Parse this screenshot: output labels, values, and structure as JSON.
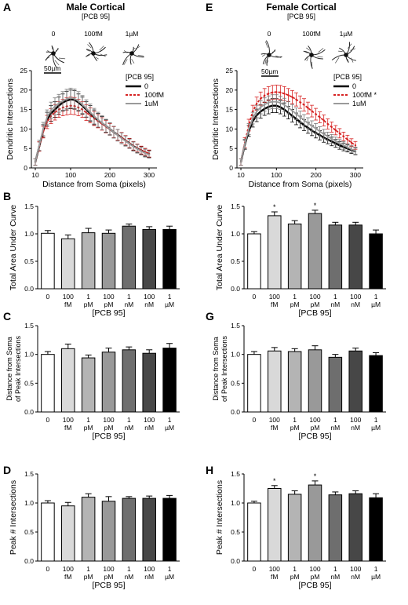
{
  "chart_data": [
    {
      "id": "A",
      "type": "line",
      "letter": "A",
      "title": "Male Cortical",
      "subtitle": "[PCB 95]",
      "image_labels": [
        "0",
        "100fM",
        "1µM"
      ],
      "scale_label": "50µm",
      "xlabel": "Distance from Soma (pixels)",
      "ylabel": "Dendritic Intersections",
      "xlim": [
        0,
        320
      ],
      "ylim": [
        0,
        25
      ],
      "xticks": [
        10,
        100,
        200,
        300
      ],
      "yticks": [
        0,
        5,
        10,
        15,
        20,
        25
      ],
      "legend": {
        "title": "[PCB 95]",
        "position": "top-right",
        "labels": [
          "0",
          "100fM",
          "1uM"
        ]
      },
      "colors": [
        "#000000",
        "#d62020",
        "#9a9a9a"
      ],
      "x": [
        10,
        20,
        30,
        40,
        50,
        60,
        70,
        80,
        90,
        100,
        110,
        120,
        130,
        140,
        150,
        160,
        170,
        180,
        190,
        200,
        210,
        220,
        230,
        240,
        250,
        260,
        270,
        280,
        290,
        300
      ],
      "series": [
        {
          "name": "0",
          "values": [
            1.5,
            5.5,
            9.5,
            12.5,
            14,
            15,
            16,
            16.8,
            17.3,
            17.6,
            17.5,
            16.8,
            16,
            15,
            14,
            13,
            12.2,
            11.5,
            10.8,
            10,
            9.2,
            8.5,
            7.8,
            7,
            6.3,
            5.6,
            5,
            4.5,
            4,
            3.6
          ],
          "err": [
            0.8,
            1.2,
            1.6,
            1.8,
            2,
            2,
            2.2,
            2.2,
            2.4,
            2.4,
            2.4,
            2.2,
            2.2,
            2,
            2,
            1.9,
            1.8,
            1.7,
            1.6,
            1.5,
            1.5,
            1.4,
            1.3,
            1.3,
            1.2,
            1.1,
            1.1,
            1,
            1,
            0.9
          ]
        },
        {
          "name": "100fM",
          "values": [
            1.5,
            5.5,
            9.2,
            11.8,
            13.3,
            14.3,
            15,
            15.5,
            15.8,
            16,
            15.9,
            15.5,
            15,
            14.2,
            13.5,
            12.7,
            12,
            11.3,
            10.6,
            9.9,
            9.2,
            8.5,
            7.8,
            7.1,
            6.4,
            5.7,
            5.1,
            4.6,
            4.1,
            3.7
          ],
          "err": [
            0.8,
            1.2,
            1.5,
            1.7,
            1.9,
            2,
            2,
            2.1,
            2.2,
            2.2,
            2.2,
            2.1,
            2,
            2,
            1.9,
            1.8,
            1.7,
            1.6,
            1.6,
            1.5,
            1.4,
            1.4,
            1.3,
            1.2,
            1.2,
            1.1,
            1,
            1,
            0.9,
            0.9
          ]
        },
        {
          "name": "1uM",
          "values": [
            1.5,
            5.8,
            10,
            13,
            14.8,
            15.8,
            16.6,
            17.2,
            17.7,
            18,
            17.8,
            17.2,
            16.3,
            15.3,
            14.3,
            13.3,
            12.4,
            11.6,
            10.8,
            10,
            9.2,
            8.4,
            7.6,
            6.9,
            6.2,
            5.5,
            4.9,
            4.3,
            3.8,
            3.4
          ],
          "err": [
            0.8,
            1.3,
            1.7,
            1.9,
            2.1,
            2.2,
            2.3,
            2.4,
            2.5,
            2.5,
            2.5,
            2.4,
            2.3,
            2.2,
            2.1,
            2,
            1.9,
            1.8,
            1.7,
            1.6,
            1.5,
            1.5,
            1.4,
            1.3,
            1.2,
            1.2,
            1.1,
            1,
            1,
            0.9
          ]
        }
      ]
    },
    {
      "id": "E",
      "type": "line",
      "letter": "E",
      "title": "Female Cortical",
      "subtitle": "[PCB 95]",
      "image_labels": [
        "0",
        "100fM",
        "1µM"
      ],
      "scale_label": "50µm",
      "xlabel": "Distance from Soma (pixels)",
      "ylabel": "Dendritic Intersections",
      "xlim": [
        0,
        320
      ],
      "ylim": [
        0,
        25
      ],
      "xticks": [
        10,
        100,
        200,
        300
      ],
      "yticks": [
        0,
        5,
        10,
        15,
        20,
        25
      ],
      "legend": {
        "title": "[PCB 95]",
        "position": "top-right",
        "labels": [
          "0",
          "100fM *",
          "1uM"
        ]
      },
      "colors": [
        "#000000",
        "#d62020",
        "#9a9a9a"
      ],
      "x": [
        10,
        20,
        30,
        40,
        50,
        60,
        70,
        80,
        90,
        100,
        110,
        120,
        130,
        140,
        150,
        160,
        170,
        180,
        190,
        200,
        210,
        220,
        230,
        240,
        250,
        260,
        270,
        280,
        290,
        300
      ],
      "series": [
        {
          "name": "0",
          "values": [
            1.5,
            6,
            9.5,
            12,
            13.5,
            14.5,
            15.2,
            15.7,
            16,
            16,
            15.6,
            15,
            14.2,
            13.4,
            12.6,
            11.8,
            11,
            10.3,
            9.6,
            9,
            8.4,
            7.8,
            7.3,
            6.8,
            6.3,
            5.8,
            5.4,
            5,
            4.6,
            4.3
          ],
          "err": [
            0.8,
            1.2,
            1.4,
            1.5,
            1.6,
            1.7,
            1.7,
            1.8,
            1.8,
            1.8,
            1.7,
            1.7,
            1.6,
            1.6,
            1.5,
            1.5,
            1.4,
            1.4,
            1.3,
            1.3,
            1.2,
            1.2,
            1.1,
            1.1,
            1,
            1,
            1,
            0.9,
            0.9,
            0.9
          ]
        },
        {
          "name": "100fM *",
          "values": [
            1.5,
            6.5,
            11,
            14.5,
            16.5,
            17.8,
            18.6,
            19.1,
            19.4,
            19.5,
            19.4,
            19.1,
            18.7,
            18.2,
            17.6,
            16.9,
            16.2,
            15.4,
            14.6,
            13.8,
            13,
            12.2,
            11.3,
            10.5,
            9.7,
            8.9,
            8.1,
            7.3,
            6.5,
            5.8
          ],
          "err": [
            0.8,
            1.3,
            1.5,
            1.6,
            1.7,
            1.7,
            1.8,
            1.8,
            1.8,
            1.8,
            1.8,
            1.8,
            1.7,
            1.7,
            1.7,
            1.6,
            1.6,
            1.5,
            1.5,
            1.5,
            1.4,
            1.4,
            1.3,
            1.3,
            1.2,
            1.2,
            1.1,
            1.1,
            1,
            1
          ]
        },
        {
          "name": "1uM",
          "values": [
            1.5,
            6.2,
            10,
            12.8,
            14.5,
            15.6,
            16.3,
            16.8,
            17,
            17,
            16.7,
            16.2,
            15.5,
            14.7,
            13.9,
            13.1,
            12.3,
            11.5,
            10.8,
            10.1,
            9.4,
            8.7,
            8.1,
            7.5,
            6.9,
            6.3,
            5.8,
            5.3,
            4.8,
            4.4
          ],
          "err": [
            0.8,
            1.2,
            1.4,
            1.5,
            1.6,
            1.7,
            1.7,
            1.7,
            1.8,
            1.8,
            1.7,
            1.7,
            1.6,
            1.6,
            1.5,
            1.5,
            1.4,
            1.4,
            1.3,
            1.3,
            1.2,
            1.2,
            1.1,
            1.1,
            1,
            1,
            1,
            0.9,
            0.9,
            0.9
          ]
        }
      ]
    },
    {
      "id": "B",
      "type": "bar",
      "letter": "B",
      "ylabel": "Total Area Under Curve",
      "xlabel": "[PCB 95]",
      "categories": [
        "0",
        "100 fM",
        "1 pM",
        "100 pM",
        "1 nM",
        "100 nM",
        "1 µM"
      ],
      "values": [
        1.01,
        0.91,
        1.02,
        1.01,
        1.14,
        1.08,
        1.08
      ],
      "err": [
        0.05,
        0.07,
        0.08,
        0.06,
        0.04,
        0.05,
        0.06
      ],
      "sig": [
        false,
        false,
        false,
        false,
        false,
        false,
        false
      ],
      "ylim": [
        0,
        1.5
      ],
      "yticks": [
        0,
        0.5,
        1.0,
        1.5
      ]
    },
    {
      "id": "F",
      "type": "bar",
      "letter": "F",
      "ylabel": "Total Area Under Curve",
      "xlabel": "[PCB 95]",
      "categories": [
        "0",
        "100 fM",
        "1 pM",
        "100 pM",
        "1 nM",
        "100 nM",
        "1 µM"
      ],
      "values": [
        1.0,
        1.33,
        1.18,
        1.37,
        1.16,
        1.16,
        1.0
      ],
      "err": [
        0.04,
        0.07,
        0.06,
        0.06,
        0.05,
        0.05,
        0.07
      ],
      "sig": [
        false,
        true,
        false,
        true,
        false,
        false,
        false
      ],
      "sig_mark": "*",
      "ylim": [
        0,
        1.5
      ],
      "yticks": [
        0,
        0.5,
        1.0,
        1.5
      ]
    },
    {
      "id": "C",
      "type": "bar",
      "letter": "C",
      "ylabel": "Distance from Soma of Peak Intersections",
      "xlabel": "[PCB 95]",
      "categories": [
        "0",
        "100 fM",
        "1 pM",
        "100 pM",
        "1 nM",
        "100 nM",
        "1 µM"
      ],
      "values": [
        1.0,
        1.1,
        0.94,
        1.04,
        1.08,
        1.02,
        1.11
      ],
      "err": [
        0.05,
        0.08,
        0.05,
        0.07,
        0.05,
        0.06,
        0.08
      ],
      "sig": [
        false,
        false,
        false,
        false,
        false,
        false,
        false
      ],
      "ylim": [
        0,
        1.5
      ],
      "yticks": [
        0,
        0.5,
        1.0,
        1.5
      ]
    },
    {
      "id": "G",
      "type": "bar",
      "letter": "G",
      "ylabel": "Distance from Soma of Peak Intersections",
      "xlabel": "[PCB 95]",
      "categories": [
        "0",
        "100 fM",
        "1 pM",
        "100 pM",
        "1 nM",
        "100 nM",
        "1 µM"
      ],
      "values": [
        1.0,
        1.06,
        1.05,
        1.08,
        0.95,
        1.06,
        0.98
      ],
      "err": [
        0.05,
        0.06,
        0.05,
        0.07,
        0.05,
        0.05,
        0.05
      ],
      "sig": [
        false,
        false,
        false,
        false,
        false,
        false,
        false
      ],
      "ylim": [
        0,
        1.5
      ],
      "yticks": [
        0,
        0.5,
        1.0,
        1.5
      ]
    },
    {
      "id": "D",
      "type": "bar",
      "letter": "D",
      "ylabel": "Peak # Intersections",
      "xlabel": "[PCB 95]",
      "categories": [
        "0",
        "100 fM",
        "1 pM",
        "100 pM",
        "1 nM",
        "100 nM",
        "1 µM"
      ],
      "values": [
        1.0,
        0.95,
        1.1,
        1.03,
        1.08,
        1.08,
        1.08
      ],
      "err": [
        0.04,
        0.06,
        0.06,
        0.08,
        0.03,
        0.04,
        0.05
      ],
      "sig": [
        false,
        false,
        false,
        false,
        false,
        false,
        false
      ],
      "ylim": [
        0,
        1.5
      ],
      "yticks": [
        0,
        0.5,
        1.0,
        1.5
      ]
    },
    {
      "id": "H",
      "type": "bar",
      "letter": "H",
      "ylabel": "Peak # Intersections",
      "xlabel": "[PCB 95]",
      "categories": [
        "0",
        "100 fM",
        "1 pM",
        "100 pM",
        "1 nM",
        "100 nM",
        "1 µM"
      ],
      "values": [
        1.0,
        1.25,
        1.15,
        1.31,
        1.14,
        1.16,
        1.09
      ],
      "err": [
        0.03,
        0.05,
        0.06,
        0.07,
        0.05,
        0.05,
        0.07
      ],
      "sig": [
        false,
        true,
        false,
        true,
        false,
        false,
        false
      ],
      "sig_mark": "*",
      "ylim": [
        0,
        1.5
      ],
      "yticks": [
        0,
        0.5,
        1.0,
        1.5
      ]
    }
  ],
  "colors": {
    "bar_fills": [
      "#ffffff",
      "#d9d9d9",
      "#b4b4b4",
      "#999999",
      "#6e6e6e",
      "#474747",
      "#000000"
    ],
    "accent_red": "#d62020",
    "grey_line": "#9a9a9a"
  }
}
